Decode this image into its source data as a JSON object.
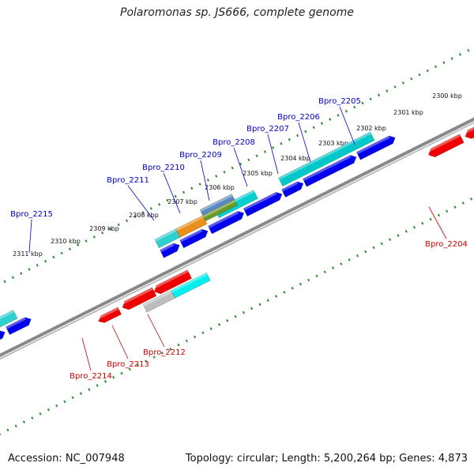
{
  "title": "Polaromonas sp. JS666, complete genome",
  "footer": {
    "accession": "Accession: NC_007948",
    "topology": "Topology: circular; Length: 5,200,264 bp; Genes: 4,873"
  },
  "colors": {
    "forward_label": "#0000cc",
    "reverse_label": "#cc0000",
    "backbone": "#777777",
    "ruler": "#2e8b2e"
  },
  "kbp_ticks": [
    "2300 kbp",
    "2301 kbp",
    "2302 kbp",
    "2303 kbp",
    "2304 kbp",
    "2305 kbp",
    "2306 kbp",
    "2307 kbp",
    "2308 kbp",
    "2309 kbp",
    "2310 kbp",
    "2311 kbp"
  ],
  "forward_gene_labels": [
    "Bpro_2205",
    "Bpro_2206",
    "Bpro_2207",
    "Bpro_2208",
    "Bpro_2209",
    "Bpro_2210",
    "Bpro_2211",
    "Bpro_2215"
  ],
  "reverse_gene_labels": [
    "Bpro_2204",
    "Bpro_2212",
    "Bpro_2213",
    "Bpro_2214"
  ]
}
